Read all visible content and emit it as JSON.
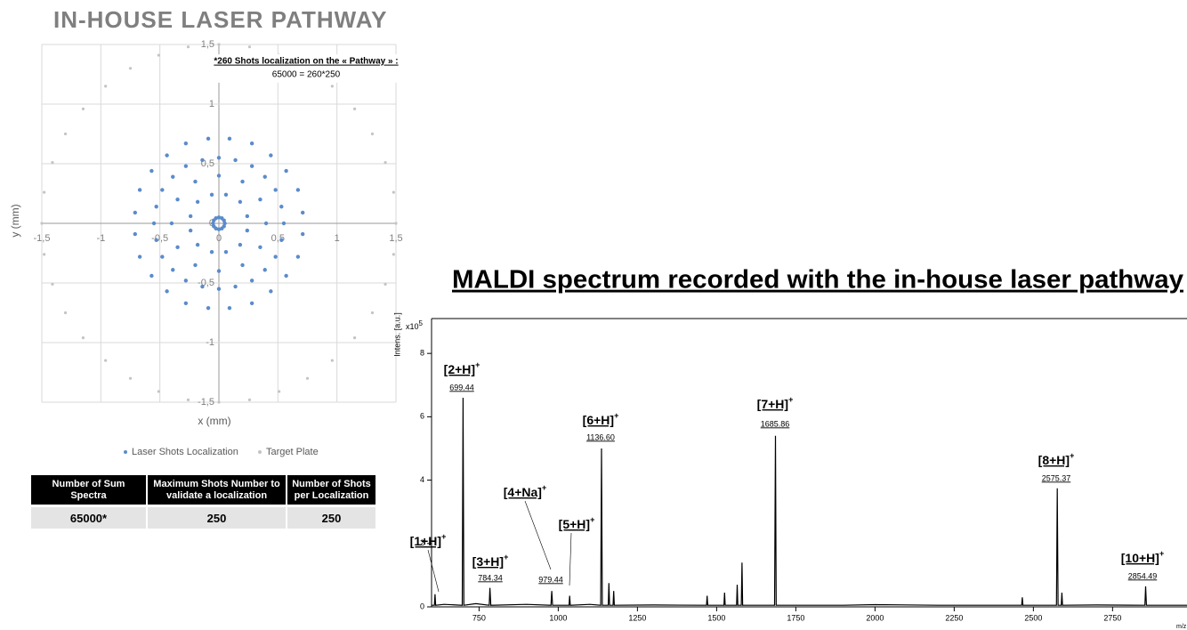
{
  "page_title": "IN-HOUSE LASER PATHWAY",
  "chart_data": [
    {
      "type": "scatter",
      "note_title": "*260 Shots localization on the « Pathway » :",
      "note_formula": "65000 = 260*250",
      "xlabel": "x (mm)",
      "ylabel": "y (mm)",
      "xlim": [
        -1.5,
        1.5
      ],
      "ylim": [
        -1.5,
        1.5
      ],
      "xticks": [
        {
          "value": -1.5,
          "label": "-1,5"
        },
        -1,
        {
          "value": -0.5,
          "label": "-0,5"
        },
        0,
        {
          "value": 0.5,
          "label": "0,5"
        },
        1,
        {
          "value": 1.5,
          "label": "1,5"
        }
      ],
      "yticks": [
        {
          "value": -1.5,
          "label": "-1,5"
        },
        -1,
        {
          "value": -0.5,
          "label": "-0,5"
        },
        0,
        {
          "value": 0.5,
          "label": "0,5"
        },
        1,
        {
          "value": 1.5,
          "label": "1,5"
        }
      ],
      "grid": true,
      "series": [
        {
          "name": "Laser Shots Localization",
          "color": "#5b8bcb",
          "x": [
            0.05,
            0.043,
            0.025,
            0,
            -0.025,
            -0.043,
            -0.05,
            -0.043,
            -0.025,
            0,
            0.025,
            0.043,
            0.24,
            0.18,
            0.06,
            -0.06,
            -0.18,
            -0.24,
            -0.24,
            -0.18,
            -0.06,
            0.06,
            0.18,
            0.24,
            0.4,
            0.35,
            0.2,
            0,
            -0.2,
            -0.35,
            -0.4,
            -0.35,
            -0.2,
            0,
            0.2,
            0.35,
            0.55,
            0.53,
            0.48,
            0.39,
            0.28,
            0.14,
            0,
            -0.14,
            -0.28,
            -0.39,
            -0.48,
            -0.53,
            -0.55,
            -0.53,
            -0.48,
            -0.39,
            -0.28,
            -0.14,
            0,
            0.14,
            0.28,
            0.39,
            0.48,
            0.53,
            0.71,
            0.67,
            0.57,
            0.44,
            0.28,
            0.09,
            -0.09,
            -0.28,
            -0.44,
            -0.57,
            -0.67,
            -0.71,
            -0.71,
            -0.67,
            -0.57,
            -0.44,
            -0.28,
            -0.09,
            0.09,
            0.28,
            0.44,
            0.57,
            0.67,
            0.71
          ],
          "values": [
            0,
            0.025,
            0.043,
            0.05,
            0.043,
            0.025,
            0,
            -0.025,
            -0.043,
            -0.05,
            -0.043,
            -0.025,
            0.06,
            0.18,
            0.24,
            0.24,
            0.18,
            0.06,
            -0.06,
            -0.18,
            -0.24,
            -0.24,
            -0.18,
            -0.06,
            0,
            0.2,
            0.35,
            0.4,
            0.35,
            0.2,
            0,
            -0.2,
            -0.35,
            -0.4,
            -0.35,
            -0.2,
            0,
            0.14,
            0.28,
            0.39,
            0.48,
            0.53,
            0.55,
            0.53,
            0.48,
            0.39,
            0.28,
            0.14,
            0,
            -0.14,
            -0.28,
            -0.39,
            -0.48,
            -0.53,
            -0.55,
            -0.53,
            -0.48,
            -0.39,
            -0.28,
            -0.14,
            0.09,
            0.28,
            0.44,
            0.57,
            0.67,
            0.71,
            0.71,
            0.67,
            0.57,
            0.44,
            0.28,
            0.09,
            -0.09,
            -0.28,
            -0.44,
            -0.57,
            -0.67,
            -0.71,
            -0.71,
            -0.67,
            -0.57,
            -0.44,
            -0.28,
            -0.09
          ]
        },
        {
          "name": "Target Plate",
          "color": "#c4c4c4",
          "x": [
            1.5,
            1.48,
            1.41,
            1.3,
            1.15,
            0.96,
            0.75,
            0.51,
            0.26,
            0,
            -0.26,
            -0.51,
            -0.75,
            -0.96,
            -1.15,
            -1.3,
            -1.41,
            -1.48,
            -1.5,
            -1.48,
            -1.41,
            -1.3,
            -1.15,
            -0.96,
            -0.75,
            -0.51,
            -0.26,
            0,
            0.26,
            0.51,
            0.75,
            0.96,
            1.15,
            1.3,
            1.41,
            1.48
          ],
          "values": [
            0,
            0.26,
            0.51,
            0.75,
            0.96,
            1.15,
            1.3,
            1.41,
            1.48,
            1.5,
            1.48,
            1.41,
            1.3,
            1.15,
            0.96,
            0.75,
            0.51,
            0.26,
            0,
            -0.26,
            -0.51,
            -0.75,
            -0.96,
            -1.15,
            -1.3,
            -1.41,
            -1.48,
            -1.5,
            -1.48,
            -1.41,
            -1.3,
            -1.15,
            -0.96,
            -0.75,
            -0.51,
            -0.26
          ]
        }
      ]
    },
    {
      "type": "line",
      "title": "MALDI spectrum recorded with the in-house laser pathway",
      "xlabel": "m/z",
      "ylabel": "Intens. [a.u.]",
      "y_multiplier": {
        "base": "x10",
        "exponent": "5"
      },
      "xlim": [
        600,
        2985
      ],
      "ylim": [
        0,
        9.1
      ],
      "xticks": [
        750,
        1000,
        1250,
        1500,
        1750,
        2000,
        2250,
        2500,
        2750
      ],
      "yticks": [
        0,
        2,
        4,
        6,
        8
      ],
      "color": "#000000",
      "x": [
        600,
        609,
        611,
        613,
        640,
        697,
        699.44,
        702,
        740,
        782,
        784.34,
        787,
        900,
        977,
        979.44,
        982,
        1034,
        1036,
        1038,
        1100,
        1134,
        1136.6,
        1139,
        1158,
        1160,
        1162,
        1173,
        1175,
        1177,
        1300,
        1468,
        1470,
        1472,
        1523,
        1525,
        1527,
        1563,
        1565,
        1567,
        1578,
        1580,
        1582,
        1683,
        1685.86,
        1688,
        1900,
        2000,
        2200,
        2463,
        2465,
        2467,
        2573,
        2575.37,
        2578,
        2588,
        2590,
        2592,
        2700,
        2852,
        2854.49,
        2857,
        2985
      ],
      "values": [
        0.05,
        0.05,
        0.4,
        0.05,
        0.08,
        0.05,
        6.6,
        0.05,
        0.1,
        0.05,
        0.6,
        0.05,
        0.08,
        0.05,
        0.5,
        0.05,
        0.05,
        0.35,
        0.05,
        0.08,
        0.05,
        5,
        0.05,
        0.05,
        0.75,
        0.05,
        0.05,
        0.5,
        0.05,
        0.06,
        0.05,
        0.35,
        0.05,
        0.05,
        0.45,
        0.05,
        0.05,
        0.7,
        0.05,
        0.05,
        1.4,
        0.05,
        0.05,
        5.4,
        0.05,
        0.05,
        0.07,
        0.05,
        0.05,
        0.3,
        0.05,
        0.05,
        3.74,
        0.05,
        0.05,
        0.45,
        0.05,
        0.06,
        0.05,
        0.65,
        0.05,
        0.05
      ],
      "annotations": [
        {
          "ion": "[1+H]",
          "charge": "+"
        },
        {
          "ion": "[2+H]",
          "charge": "+",
          "mz": "699.44"
        },
        {
          "ion": "[3+H]",
          "charge": "+",
          "mz": "784.34"
        },
        {
          "ion": "[4+Na]",
          "charge": "+",
          "mz": "979.44"
        },
        {
          "ion": "[5+H]",
          "charge": "+"
        },
        {
          "ion": "[6+H]",
          "charge": "+",
          "mz": "1136.60"
        },
        {
          "ion": "[7+H]",
          "charge": "+",
          "mz": "1685.86"
        },
        {
          "ion": "[8+H]",
          "charge": "+",
          "mz": "2575.37"
        },
        {
          "ion": "[10+H]",
          "charge": "+",
          "mz": "2854.49"
        }
      ]
    }
  ],
  "table": {
    "header": [
      "Number of Sum Spectra",
      "Maximum Shots Number to validate a localization",
      "Number of Shots per Localization"
    ],
    "rows": [
      [
        "65000*",
        "250",
        "250"
      ]
    ]
  }
}
